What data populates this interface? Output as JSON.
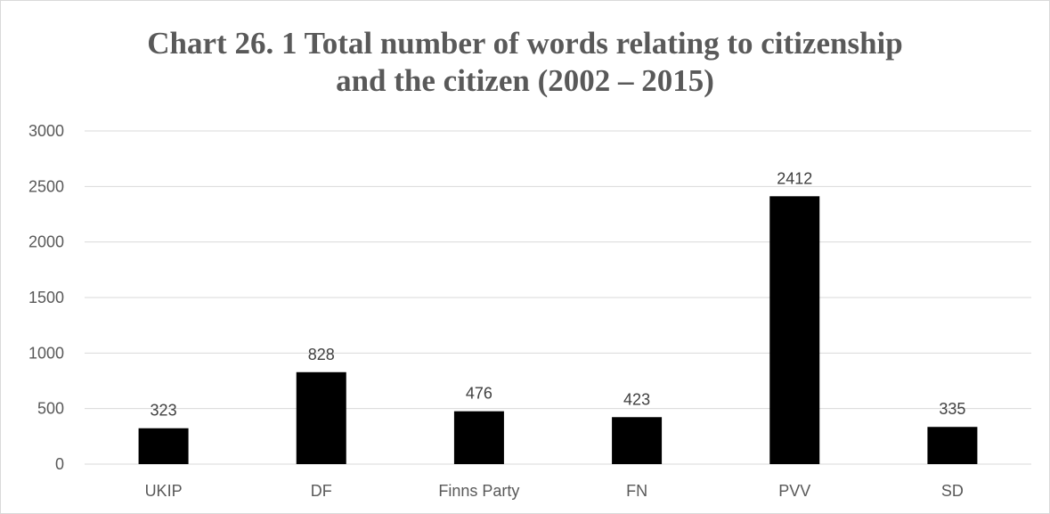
{
  "chart_data": {
    "type": "bar",
    "title_line1": "Chart 26. 1 Total number of words relating to citizenship",
    "title_line2": "and the citizen (2002 – 2015)",
    "categories": [
      "UKIP",
      "DF",
      "Finns Party",
      "FN",
      "PVV",
      "SD"
    ],
    "values": [
      323,
      828,
      476,
      423,
      2412,
      335
    ],
    "data_labels": [
      "323",
      "828",
      "476",
      "423",
      "2412",
      "335"
    ],
    "y_ticks": [
      "0",
      "500",
      "1000",
      "1500",
      "2000",
      "2500",
      "3000"
    ],
    "ylim": [
      0,
      3000
    ],
    "xlabel": "",
    "ylabel": "",
    "grid": true,
    "legend": "none",
    "bar_color": "#000000",
    "grid_color": "#d9d9d9"
  }
}
